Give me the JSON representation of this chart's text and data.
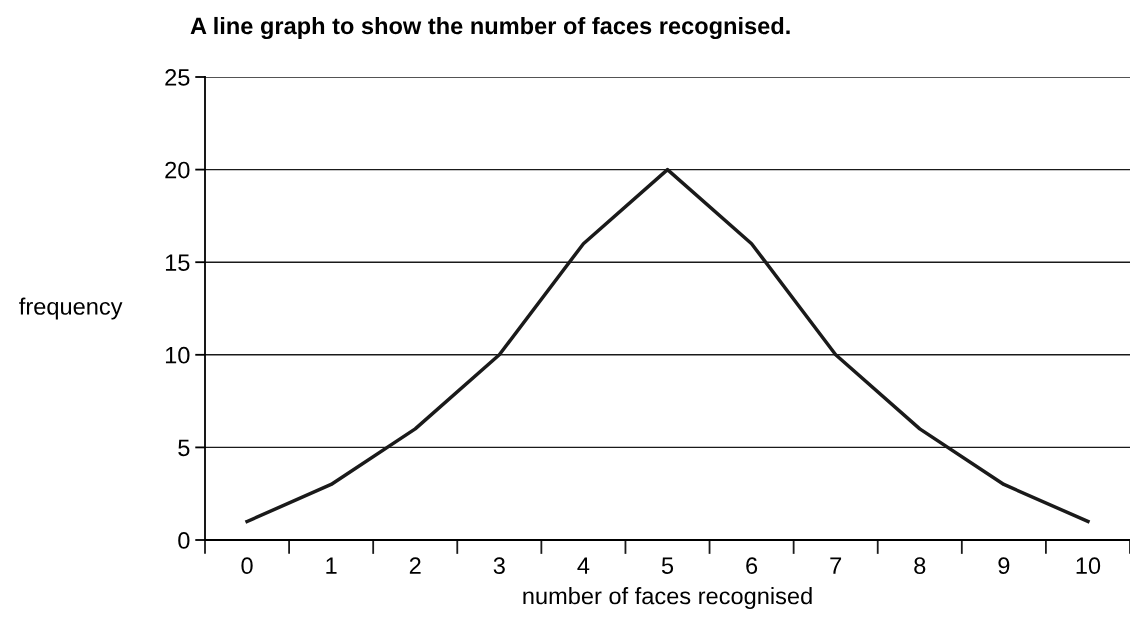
{
  "chart_data": {
    "type": "line",
    "title": "A line graph to show the number of faces recognised.",
    "xlabel": "number of faces recognised",
    "ylabel": "frequency",
    "categories": [
      "0",
      "1",
      "2",
      "3",
      "4",
      "5",
      "6",
      "7",
      "8",
      "9",
      "10"
    ],
    "series": [
      {
        "color": "#1a1a1a",
        "values": [
          1,
          3,
          6,
          10,
          16,
          20,
          16,
          10,
          6,
          3,
          1
        ]
      }
    ],
    "ylim": [
      0,
      25
    ],
    "yticks": [
      0,
      5,
      10,
      15,
      20,
      25
    ],
    "grid": "y",
    "marker": "none",
    "line_style": "solid",
    "legend": false
  }
}
